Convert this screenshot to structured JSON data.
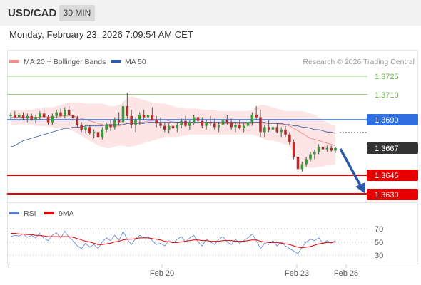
{
  "header": {
    "symbol": "USD/CAD",
    "interval": "30 MIN"
  },
  "timestamp": "Monday, February 23, 2026 7:09:54 AM CET",
  "legend": {
    "items": [
      {
        "label": "MA 20 + Bollinger Bands",
        "color": "#f48a8a"
      },
      {
        "label": "MA 50",
        "color": "#2e5aa8"
      }
    ],
    "copyright": "Research © 2026 Trading Central"
  },
  "price_levels": [
    {
      "value": "1.3725",
      "style": "green-text",
      "color": "#6ab04c"
    },
    {
      "value": "1.3710",
      "style": "green-text",
      "color": "#6ab04c"
    },
    {
      "value": "1.3690",
      "style": "blue-badge",
      "color": "#2f6fe0"
    },
    {
      "value": "1.3667",
      "style": "dark-badge",
      "color": "#333333"
    },
    {
      "value": "1.3645",
      "style": "red-badge",
      "color": "#e60000"
    },
    {
      "value": "1.3630",
      "style": "red-badge",
      "color": "#e60000"
    }
  ],
  "rsi_legend": [
    {
      "label": "RSI",
      "color": "#5b7fd6"
    },
    {
      "label": "9MA",
      "color": "#e60000"
    }
  ],
  "rsi_levels": [
    "70",
    "50",
    "30"
  ],
  "x_axis": [
    "Feb 20",
    "Feb 23",
    "Feb 26"
  ],
  "chart_data": {
    "type": "candlestick",
    "candles": [
      [
        1.3693,
        1.3696,
        1.369,
        1.3694
      ],
      [
        1.3694,
        1.3697,
        1.3691,
        1.3692
      ],
      [
        1.3692,
        1.3695,
        1.3689,
        1.3694
      ],
      [
        1.3694,
        1.3696,
        1.369,
        1.3691
      ],
      [
        1.3691,
        1.3695,
        1.3688,
        1.3693
      ],
      [
        1.3693,
        1.3695,
        1.3689,
        1.369
      ],
      [
        1.369,
        1.3694,
        1.3687,
        1.3692
      ],
      [
        1.3692,
        1.3697,
        1.369,
        1.3695
      ],
      [
        1.3695,
        1.3698,
        1.3691,
        1.3692
      ],
      [
        1.3692,
        1.3694,
        1.3686,
        1.3688
      ],
      [
        1.3688,
        1.3695,
        1.3686,
        1.3693
      ],
      [
        1.3693,
        1.3698,
        1.3691,
        1.3696
      ],
      [
        1.3696,
        1.3699,
        1.3692,
        1.3693
      ],
      [
        1.3693,
        1.37,
        1.3691,
        1.3698
      ],
      [
        1.3698,
        1.3701,
        1.3693,
        1.3694
      ],
      [
        1.3694,
        1.3696,
        1.3689,
        1.3691
      ],
      [
        1.3691,
        1.3693,
        1.3684,
        1.3686
      ],
      [
        1.3686,
        1.3688,
        1.368,
        1.3682
      ],
      [
        1.3682,
        1.3686,
        1.3679,
        1.3684
      ],
      [
        1.3684,
        1.3686,
        1.3678,
        1.3679
      ],
      [
        1.3679,
        1.3682,
        1.3675,
        1.368
      ],
      [
        1.368,
        1.3684,
        1.3673,
        1.3676
      ],
      [
        1.3676,
        1.3684,
        1.3674,
        1.3682
      ],
      [
        1.3682,
        1.3688,
        1.368,
        1.3686
      ],
      [
        1.3686,
        1.369,
        1.3681,
        1.3684
      ],
      [
        1.3684,
        1.3692,
        1.3682,
        1.369
      ],
      [
        1.369,
        1.3696,
        1.3686,
        1.3688
      ],
      [
        1.3688,
        1.3704,
        1.3686,
        1.3701
      ],
      [
        1.3701,
        1.3712,
        1.369,
        1.3693
      ],
      [
        1.3693,
        1.3698,
        1.3683,
        1.3686
      ],
      [
        1.3686,
        1.3692,
        1.368,
        1.369
      ],
      [
        1.369,
        1.3696,
        1.3686,
        1.3694
      ],
      [
        1.3694,
        1.3698,
        1.369,
        1.3692
      ],
      [
        1.3692,
        1.3696,
        1.3688,
        1.3694
      ],
      [
        1.3694,
        1.37,
        1.369,
        1.369
      ],
      [
        1.369,
        1.3693,
        1.3684,
        1.3687
      ],
      [
        1.3687,
        1.3692,
        1.3683,
        1.3685
      ],
      [
        1.3685,
        1.3688,
        1.368,
        1.3682
      ],
      [
        1.3682,
        1.3687,
        1.3679,
        1.3685
      ],
      [
        1.3685,
        1.3689,
        1.3681,
        1.3683
      ],
      [
        1.3683,
        1.3688,
        1.368,
        1.3686
      ],
      [
        1.3686,
        1.3691,
        1.3683,
        1.3689
      ],
      [
        1.3689,
        1.3693,
        1.3684,
        1.3685
      ],
      [
        1.3685,
        1.369,
        1.3682,
        1.3688
      ],
      [
        1.3688,
        1.3694,
        1.3686,
        1.3692
      ],
      [
        1.3692,
        1.3697,
        1.3688,
        1.3689
      ],
      [
        1.3689,
        1.3692,
        1.3683,
        1.3685
      ],
      [
        1.3685,
        1.369,
        1.3682,
        1.3688
      ],
      [
        1.3688,
        1.3693,
        1.3685,
        1.3687
      ],
      [
        1.3687,
        1.3691,
        1.3682,
        1.3684
      ],
      [
        1.3684,
        1.3688,
        1.368,
        1.3686
      ],
      [
        1.3686,
        1.3692,
        1.3683,
        1.369
      ],
      [
        1.369,
        1.3694,
        1.3686,
        1.3688
      ],
      [
        1.3688,
        1.3691,
        1.3682,
        1.3684
      ],
      [
        1.3684,
        1.3688,
        1.368,
        1.3686
      ],
      [
        1.3686,
        1.369,
        1.3682,
        1.3683
      ],
      [
        1.3683,
        1.3687,
        1.368,
        1.3685
      ],
      [
        1.3685,
        1.369,
        1.3682,
        1.3688
      ],
      [
        1.3688,
        1.3696,
        1.3685,
        1.3694
      ],
      [
        1.3694,
        1.3701,
        1.369,
        1.3692
      ],
      [
        1.3692,
        1.3698,
        1.3676,
        1.368
      ],
      [
        1.368,
        1.3686,
        1.3676,
        1.3684
      ],
      [
        1.3684,
        1.369,
        1.368,
        1.3682
      ],
      [
        1.3682,
        1.3686,
        1.3678,
        1.3684
      ],
      [
        1.3684,
        1.3687,
        1.3679,
        1.368
      ],
      [
        1.368,
        1.3684,
        1.3676,
        1.3682
      ],
      [
        1.3682,
        1.3685,
        1.3676,
        1.3678
      ],
      [
        1.3678,
        1.368,
        1.367,
        1.3672
      ],
      [
        1.3672,
        1.3674,
        1.3658,
        1.366
      ],
      [
        1.366,
        1.3664,
        1.3648,
        1.365
      ],
      [
        1.365,
        1.3656,
        1.3648,
        1.3654
      ],
      [
        1.3654,
        1.366,
        1.3652,
        1.3658
      ],
      [
        1.3658,
        1.3664,
        1.3656,
        1.3662
      ],
      [
        1.3662,
        1.3666,
        1.3658,
        1.3664
      ],
      [
        1.3664,
        1.367,
        1.3662,
        1.3668
      ],
      [
        1.3668,
        1.367,
        1.3664,
        1.3666
      ],
      [
        1.3666,
        1.3669,
        1.3664,
        1.3667
      ],
      [
        1.3667,
        1.3669,
        1.3664,
        1.3665
      ],
      [
        1.3665,
        1.3668,
        1.3663,
        1.3667
      ]
    ],
    "ma20": [
      1.3692,
      1.3692,
      1.3692,
      1.3692,
      1.3692,
      1.3692,
      1.3692,
      1.3692,
      1.3693,
      1.3692,
      1.3692,
      1.3692,
      1.3693,
      1.3693,
      1.3693,
      1.3693,
      1.3692,
      1.3691,
      1.369,
      1.3689,
      1.3688,
      1.3687,
      1.3686,
      1.3685,
      1.3685,
      1.3685,
      1.3685,
      1.3686,
      1.3687,
      1.3687,
      1.3687,
      1.3688,
      1.3688,
      1.3689,
      1.3689,
      1.369,
      1.369,
      1.369,
      1.3689,
      1.3688,
      1.3688,
      1.3688,
      1.3688,
      1.3688,
      1.3688,
      1.3688,
      1.3688,
      1.3688,
      1.3688,
      1.3688,
      1.3687,
      1.3687,
      1.3687,
      1.3687,
      1.3687,
      1.3687,
      1.3687,
      1.3687,
      1.3687,
      1.3688,
      1.3688,
      1.3687,
      1.3687,
      1.3687,
      1.3687,
      1.3686,
      1.3686,
      1.3685,
      1.3683,
      1.3681,
      1.3679,
      1.3677,
      1.3675,
      1.3674,
      1.3673,
      1.3672,
      1.3671,
      1.367,
      1.3669
    ],
    "bb_upper": [
      1.3698,
      1.3698,
      1.3698,
      1.3698,
      1.3698,
      1.3698,
      1.3699,
      1.3699,
      1.37,
      1.37,
      1.37,
      1.3701,
      1.3702,
      1.3703,
      1.3704,
      1.3704,
      1.3704,
      1.3704,
      1.3703,
      1.3703,
      1.3703,
      1.3703,
      1.3703,
      1.3702,
      1.3701,
      1.3701,
      1.3702,
      1.3704,
      1.3708,
      1.3709,
      1.3708,
      1.3707,
      1.3706,
      1.3705,
      1.3704,
      1.3704,
      1.3703,
      1.3703,
      1.3702,
      1.3701,
      1.37,
      1.37,
      1.3699,
      1.3699,
      1.3699,
      1.3699,
      1.3698,
      1.3698,
      1.3698,
      1.3698,
      1.3697,
      1.3697,
      1.3697,
      1.3697,
      1.3697,
      1.3697,
      1.3697,
      1.3697,
      1.3698,
      1.37,
      1.3702,
      1.3702,
      1.3701,
      1.37,
      1.3699,
      1.3698,
      1.3697,
      1.3697,
      1.3697,
      1.3697,
      1.3697,
      1.3696,
      1.3695,
      1.3694,
      1.3692,
      1.369,
      1.3688,
      1.3686,
      1.3685
    ],
    "bb_lower": [
      1.3686,
      1.3686,
      1.3686,
      1.3686,
      1.3686,
      1.3686,
      1.3685,
      1.3685,
      1.3685,
      1.3684,
      1.3684,
      1.3683,
      1.3683,
      1.3683,
      1.3682,
      1.3681,
      1.3679,
      1.3677,
      1.3675,
      1.3673,
      1.3671,
      1.3669,
      1.3668,
      1.3667,
      1.3667,
      1.3668,
      1.3669,
      1.3669,
      1.3668,
      1.3668,
      1.3669,
      1.367,
      1.3671,
      1.3672,
      1.3673,
      1.3674,
      1.3675,
      1.3676,
      1.3676,
      1.3676,
      1.3676,
      1.3677,
      1.3677,
      1.3678,
      1.3678,
      1.3678,
      1.3678,
      1.3678,
      1.3678,
      1.3678,
      1.3678,
      1.3678,
      1.3678,
      1.3678,
      1.3678,
      1.3678,
      1.3678,
      1.3678,
      1.3678,
      1.3677,
      1.3676,
      1.3674,
      1.3673,
      1.3673,
      1.3672,
      1.3671,
      1.367,
      1.3668,
      1.3663,
      1.3657,
      1.3652,
      1.3651,
      1.3651,
      1.3651,
      1.3652,
      1.3652,
      1.3653,
      1.3653,
      1.3654
    ],
    "ma50": [
      1.3668,
      1.3669,
      1.3671,
      1.3673,
      1.3674,
      1.3675,
      1.3676,
      1.3677,
      1.3678,
      1.3679,
      1.368,
      1.3681,
      1.3682,
      1.3683,
      1.3683,
      1.3684,
      1.3684,
      1.3684,
      1.3685,
      1.3685,
      1.3685,
      1.3685,
      1.3685,
      1.3686,
      1.3686,
      1.3686,
      1.3686,
      1.3686,
      1.3687,
      1.3687,
      1.3687,
      1.3687,
      1.3687,
      1.3688,
      1.3688,
      1.3688,
      1.3688,
      1.3688,
      1.3688,
      1.3688,
      1.3688,
      1.3688,
      1.3688,
      1.3688,
      1.3688,
      1.3688,
      1.3688,
      1.3688,
      1.3688,
      1.3688,
      1.3688,
      1.3688,
      1.3688,
      1.3688,
      1.3688,
      1.3688,
      1.3688,
      1.3688,
      1.3688,
      1.3688,
      1.3688,
      1.3688,
      1.3687,
      1.3687,
      1.3687,
      1.3687,
      1.3686,
      1.3686,
      1.3685,
      1.3685,
      1.3684,
      1.3684,
      1.3683,
      1.3682,
      1.3682,
      1.3681,
      1.368,
      1.368,
      1.3679
    ],
    "rsi": [
      58,
      60,
      59,
      62,
      57,
      60,
      56,
      63,
      55,
      52,
      60,
      64,
      56,
      66,
      57,
      52,
      44,
      40,
      48,
      42,
      46,
      40,
      50,
      56,
      52,
      60,
      52,
      66,
      54,
      46,
      55,
      60,
      56,
      58,
      52,
      46,
      48,
      44,
      52,
      48,
      54,
      58,
      50,
      56,
      60,
      50,
      44,
      54,
      50,
      46,
      54,
      58,
      50,
      46,
      54,
      48,
      52,
      56,
      62,
      52,
      40,
      48,
      46,
      52,
      44,
      50,
      44,
      40,
      36,
      32,
      42,
      50,
      54,
      52,
      56,
      48,
      52,
      48,
      52
    ],
    "rsi_ma": [
      63,
      63,
      62,
      62,
      61,
      61,
      60,
      60,
      59,
      58,
      58,
      58,
      58,
      58,
      58,
      57,
      55,
      53,
      51,
      50,
      48,
      46,
      46,
      47,
      48,
      50,
      51,
      53,
      54,
      54,
      55,
      56,
      56,
      56,
      55,
      54,
      53,
      51,
      50,
      49,
      49,
      50,
      51,
      52,
      53,
      53,
      52,
      52,
      51,
      51,
      51,
      52,
      52,
      52,
      51,
      51,
      51,
      52,
      53,
      53,
      51,
      50,
      49,
      49,
      49,
      48,
      47,
      46,
      44,
      42,
      41,
      42,
      43,
      45,
      47,
      48,
      49,
      49,
      50
    ],
    "projection": {
      "from": 1.3667,
      "to": 1.363
    }
  }
}
